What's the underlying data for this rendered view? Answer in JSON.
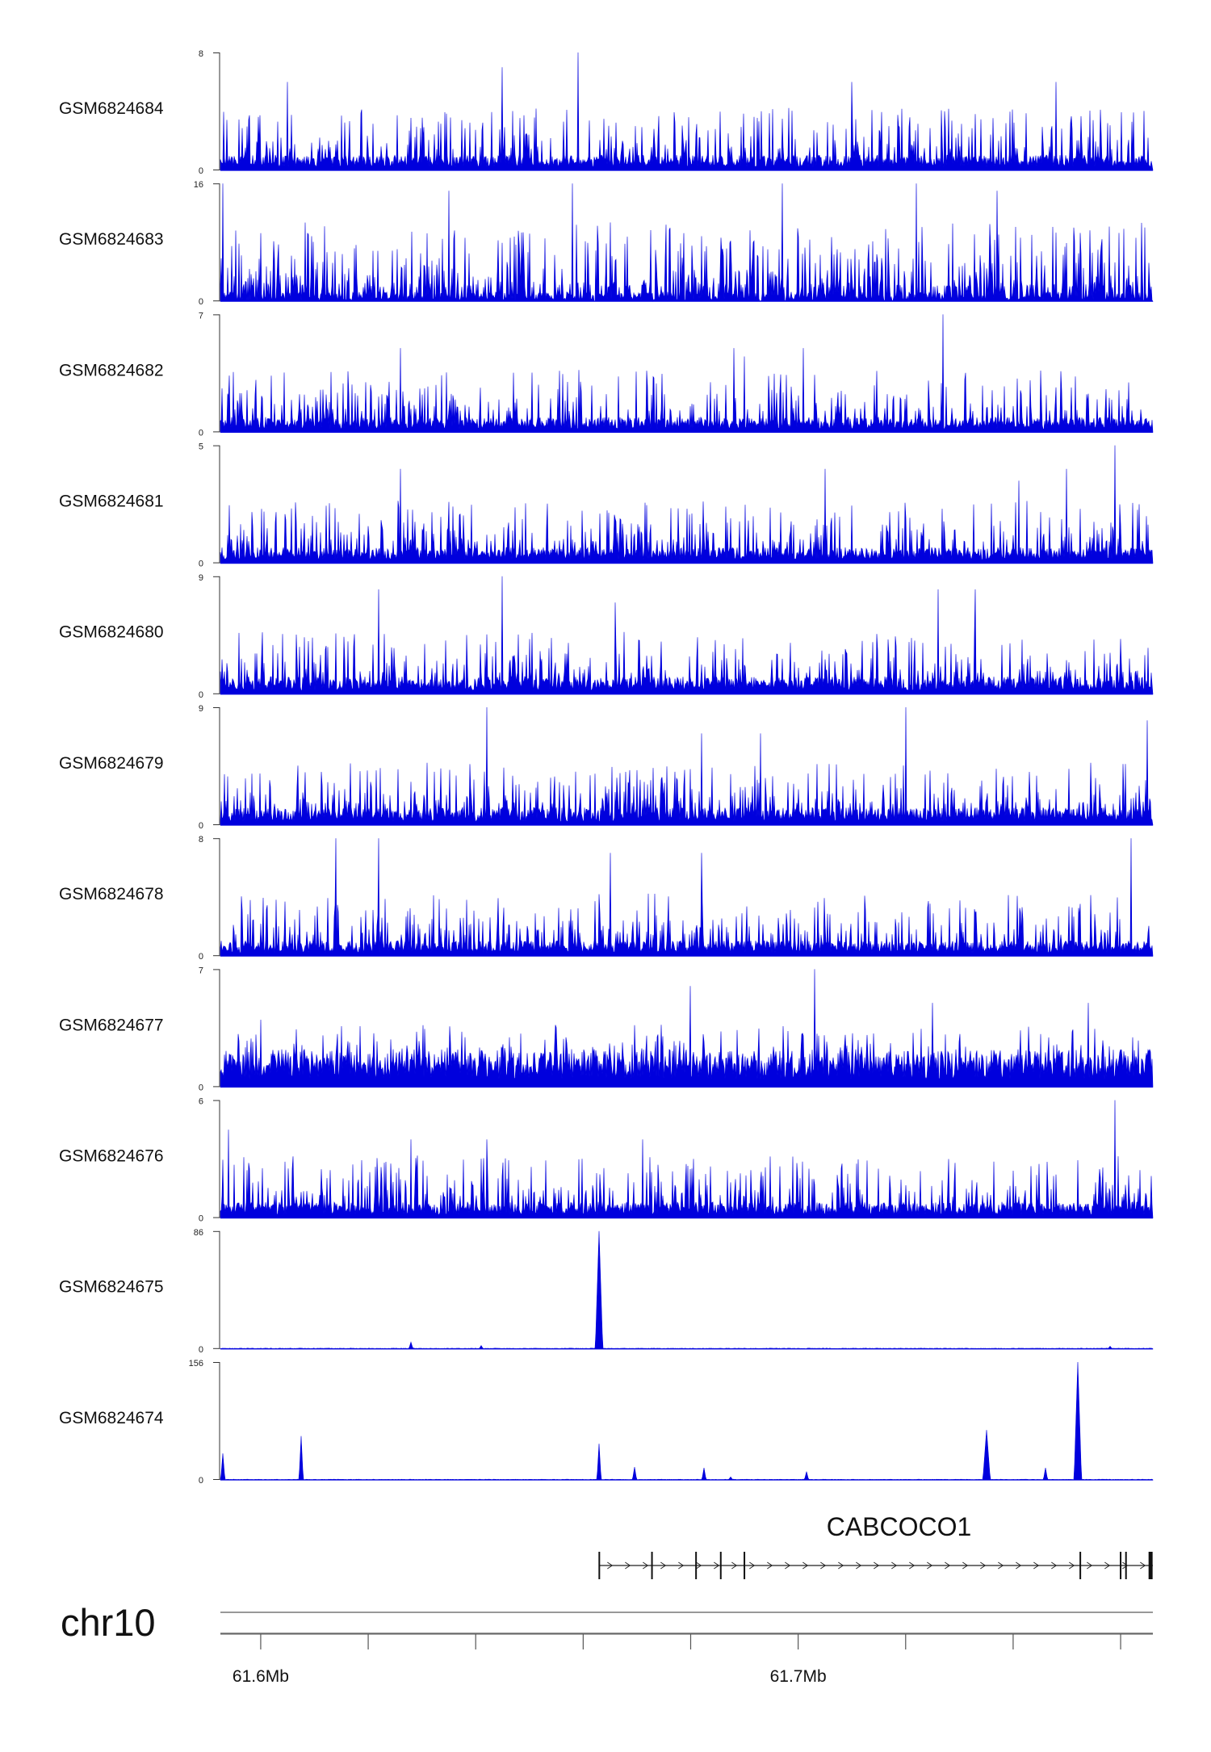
{
  "chart_data": {
    "type": "area",
    "region": {
      "chrom": "chr10",
      "start": 61592500,
      "end": 61766000
    },
    "chromosome_label": "chr10",
    "tick_positions": [
      61600000,
      61620000,
      61640000,
      61660000,
      61680000,
      61700000,
      61720000,
      61740000,
      61760000
    ],
    "tick_labels": [
      {
        "pos": 61600000,
        "text": "61.6Mb"
      },
      {
        "pos": 61700000,
        "text": "61.7Mb"
      }
    ],
    "color": "#0000dd",
    "tracks": [
      {
        "name": "GSM6824684",
        "ymax": 8,
        "ymin": 0,
        "ymax_label": "8",
        "ymin_label": "0",
        "mode": "dense",
        "baseline": 0.7,
        "peaks": [
          [
            61659000,
            8
          ],
          [
            61605000,
            6
          ],
          [
            61645000,
            7
          ],
          [
            61710000,
            6
          ],
          [
            61748000,
            6
          ]
        ]
      },
      {
        "name": "GSM6824683",
        "ymax": 16,
        "ymin": 0,
        "ymax_label": "16",
        "ymin_label": "0",
        "mode": "sparse",
        "baseline": 0,
        "peaks": [
          [
            61593000,
            16
          ],
          [
            61635000,
            15
          ],
          [
            61658000,
            16
          ],
          [
            61697000,
            16
          ],
          [
            61722000,
            16
          ],
          [
            61737000,
            15
          ]
        ]
      },
      {
        "name": "GSM6824682",
        "ymax": 7,
        "ymin": 0,
        "ymax_label": "7",
        "ymin_label": "0",
        "mode": "dense",
        "baseline": 0.6,
        "peaks": [
          [
            61727000,
            7
          ],
          [
            61626000,
            5
          ],
          [
            61688000,
            5
          ],
          [
            61701000,
            5
          ],
          [
            61690000,
            4.5
          ]
        ]
      },
      {
        "name": "GSM6824681",
        "ymax": 5,
        "ymin": 0,
        "ymax_label": "5",
        "ymin_label": "0",
        "mode": "dense",
        "baseline": 0.45,
        "peaks": [
          [
            61759000,
            5
          ],
          [
            61626000,
            4
          ],
          [
            61705000,
            4
          ],
          [
            61750000,
            4
          ],
          [
            61741000,
            3.5
          ]
        ]
      },
      {
        "name": "GSM6824680",
        "ymax": 9,
        "ymin": 0,
        "ymax_label": "9",
        "ymin_label": "0",
        "mode": "dense",
        "baseline": 0.9,
        "peaks": [
          [
            61645000,
            9
          ],
          [
            61726000,
            8
          ],
          [
            61733000,
            8
          ],
          [
            61622000,
            8
          ],
          [
            61666000,
            7
          ]
        ]
      },
      {
        "name": "GSM6824679",
        "ymax": 9,
        "ymin": 0,
        "ymax_label": "9",
        "ymin_label": "0",
        "mode": "dense",
        "baseline": 0.9,
        "peaks": [
          [
            61642000,
            9
          ],
          [
            61720000,
            9
          ],
          [
            61765000,
            8
          ],
          [
            61693000,
            7
          ],
          [
            61682000,
            7
          ]
        ]
      },
      {
        "name": "GSM6824678",
        "ymax": 8,
        "ymin": 0,
        "ymax_label": "8",
        "ymin_label": "0",
        "mode": "dense",
        "baseline": 0.7,
        "peaks": [
          [
            61614000,
            8
          ],
          [
            61622000,
            8
          ],
          [
            61665000,
            7
          ],
          [
            61682000,
            7
          ],
          [
            61762000,
            8
          ]
        ]
      },
      {
        "name": "GSM6824677",
        "ymax": 7,
        "ymin": 0,
        "ymax_label": "7",
        "ymin_label": "0",
        "mode": "dense",
        "baseline": 1.5,
        "peaks": [
          [
            61703000,
            7
          ],
          [
            61680000,
            6
          ],
          [
            61754000,
            5
          ],
          [
            61725000,
            5
          ],
          [
            61600000,
            4
          ]
        ]
      },
      {
        "name": "GSM6824676",
        "ymax": 6,
        "ymin": 0,
        "ymax_label": "6",
        "ymin_label": "0",
        "mode": "dense",
        "baseline": 0.55,
        "peaks": [
          [
            61759000,
            6
          ],
          [
            61594000,
            4.5
          ],
          [
            61628000,
            4
          ],
          [
            61642000,
            4
          ],
          [
            61671000,
            4
          ]
        ]
      },
      {
        "name": "GSM6824675",
        "ymax": 86,
        "ymin": 0,
        "ymax_label": "86",
        "ymin_label": "0",
        "mode": "flat",
        "baseline": 0.4,
        "peaks": [
          [
            61663000,
            86
          ],
          [
            61628000,
            5
          ],
          [
            61641000,
            2.5
          ],
          [
            61758000,
            2
          ]
        ]
      },
      {
        "name": "GSM6824674",
        "ymax": 156,
        "ymin": 0,
        "ymax_label": "156",
        "ymin_label": "0",
        "mode": "flat",
        "baseline": 0.6,
        "peaks": [
          [
            61593000,
            35
          ],
          [
            61607500,
            58
          ],
          [
            61663000,
            48
          ],
          [
            61669500,
            17
          ],
          [
            61682500,
            16
          ],
          [
            61687500,
            4
          ],
          [
            61701500,
            11
          ],
          [
            61735000,
            66
          ],
          [
            61746000,
            16
          ],
          [
            61752000,
            156
          ]
        ]
      }
    ],
    "gene": {
      "name": "CABCOCO1",
      "start": 61663000,
      "end": 61766000,
      "strand": "+",
      "exons": [
        61663000,
        61672800,
        61681000,
        61685600,
        61690000,
        61752500,
        61760000,
        61761000,
        61765500
      ]
    }
  }
}
